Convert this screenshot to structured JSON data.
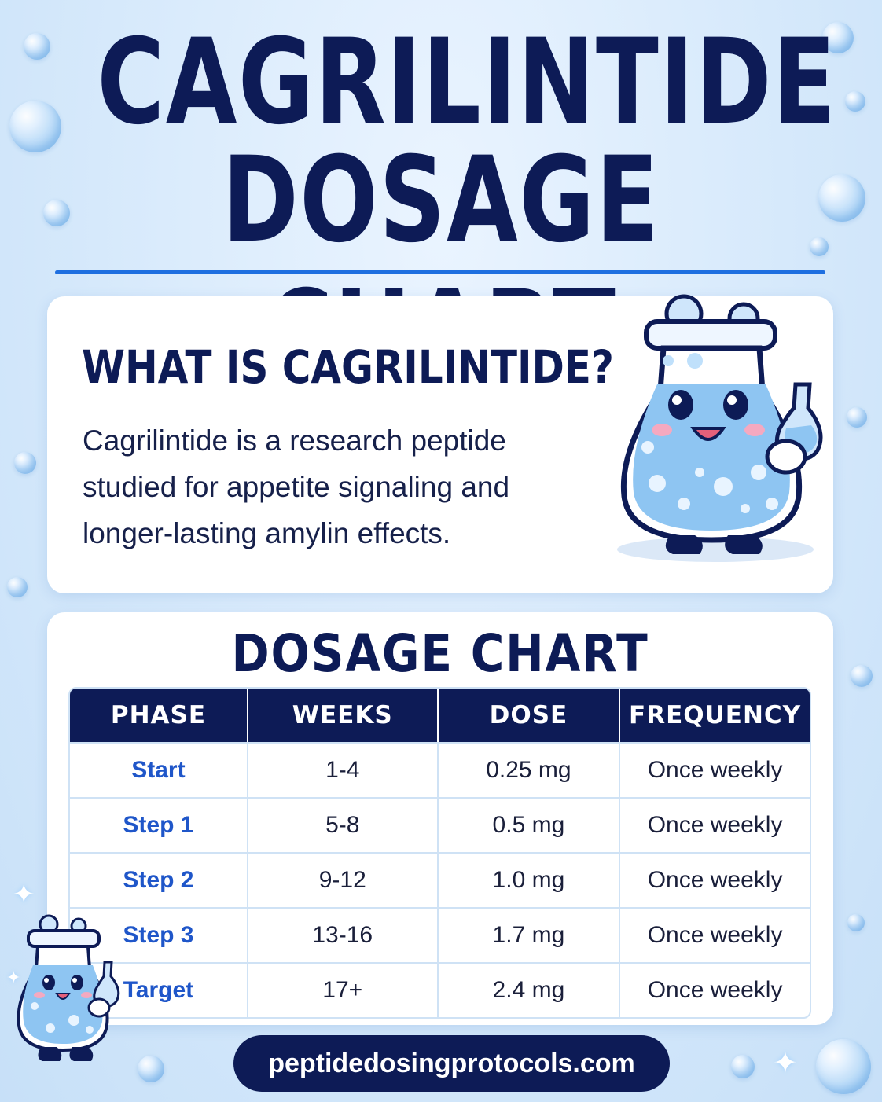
{
  "header": {
    "title_line1": "CAGRILINTIDE",
    "title_line2": "DOSAGE CHART"
  },
  "intro": {
    "heading": "WHAT IS CAGRILINTIDE?",
    "text": "Cagrilintide is a research peptide studied for appetite signaling and longer-lasting amylin effects."
  },
  "chart_data": {
    "type": "table",
    "title": "DOSAGE CHART",
    "columns": [
      "PHASE",
      "WEEKS",
      "DOSE",
      "FREQUENCY"
    ],
    "rows": [
      [
        "Start",
        "1-4",
        "0.25 mg",
        "Once weekly"
      ],
      [
        "Step 1",
        "5-8",
        "0.5 mg",
        "Once weekly"
      ],
      [
        "Step 2",
        "9-12",
        "1.0 mg",
        "Once weekly"
      ],
      [
        "Step 3",
        "13-16",
        "1.7 mg",
        "Once weekly"
      ],
      [
        "Target",
        "17+",
        "2.4 mg",
        "Once weekly"
      ]
    ]
  },
  "footer": {
    "url": "peptidedosingprotocols.com"
  },
  "colors": {
    "navy": "#0d1b56",
    "accent_blue": "#1e6fe0",
    "phase_blue": "#1f56c9",
    "background": "#d6e9fb"
  },
  "icons": [
    "bubble-icon",
    "sparkle-icon",
    "flask-mascot-icon"
  ]
}
